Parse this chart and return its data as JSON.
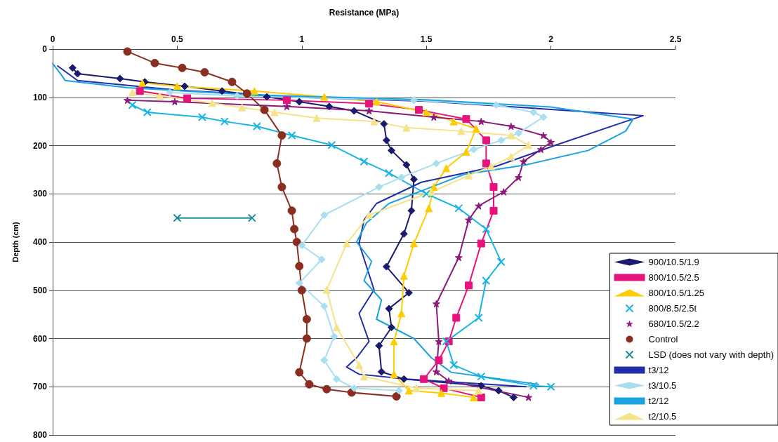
{
  "chart_data": {
    "type": "line",
    "xlabel": "Resistance (MPa)",
    "ylabel": "Depth (cm)",
    "xlim": [
      0,
      2.5
    ],
    "xticks": [
      0,
      0.5,
      1,
      1.5,
      2,
      2.5
    ],
    "ylim": [
      800,
      0
    ],
    "yticks": [
      0,
      100,
      200,
      300,
      400,
      500,
      600,
      700,
      800
    ],
    "grid": "y",
    "legend": "bottom right",
    "series": [
      {
        "name": "900/10.5/1.9",
        "color": "#1a1a6e",
        "marker": "diamond",
        "x": [
          0.08,
          0.1,
          0.27,
          0.37,
          0.53,
          0.68,
          0.86,
          0.99,
          1.11,
          1.21,
          1.33,
          1.34,
          1.36,
          1.42,
          1.45,
          1.44,
          1.41,
          1.34,
          1.43,
          1.35,
          1.36,
          1.31,
          1.32,
          1.41,
          1.72,
          1.79,
          1.85
        ],
        "values": [
          39,
          51,
          61,
          68,
          77,
          87,
          99,
          109,
          119,
          128,
          155,
          189,
          210,
          240,
          270,
          335,
          383,
          451,
          505,
          538,
          577,
          615,
          669,
          684,
          698,
          708,
          722
        ]
      },
      {
        "name": "800/10.5/2.5",
        "color": "#e8127c",
        "marker": "square",
        "x": [
          0.35,
          0.54,
          0.94,
          1.27,
          1.47,
          1.66,
          1.74,
          1.74,
          1.77,
          1.77,
          1.72,
          1.67,
          1.62,
          1.59,
          1.55,
          1.49,
          1.57,
          1.72
        ],
        "values": [
          87,
          102,
          106,
          113,
          126,
          145,
          189,
          237,
          286,
          335,
          403,
          490,
          557,
          606,
          645,
          684,
          703,
          722
        ]
      },
      {
        "name": "800/10.5/1.25",
        "color": "#ffcc00",
        "marker": "triangle",
        "x": [
          0.36,
          0.5,
          0.81,
          1.09,
          1.3,
          1.5,
          1.61,
          1.7,
          1.66,
          1.58,
          1.53,
          1.51,
          1.45,
          1.41,
          1.4,
          1.37,
          1.37,
          1.43,
          1.56,
          1.69
        ],
        "values": [
          70,
          77,
          87,
          99,
          109,
          131,
          150,
          165,
          213,
          247,
          286,
          330,
          403,
          470,
          548,
          606,
          674,
          708,
          713,
          722
        ]
      },
      {
        "name": "800/8.5/2.5t",
        "color": "#19b4e6",
        "marker": "cross",
        "x": [
          0.32,
          0.38,
          0.6,
          0.69,
          0.82,
          0.96,
          1.12,
          1.25,
          1.35,
          1.5,
          1.63,
          1.74,
          1.8,
          1.74,
          1.71,
          1.58,
          1.61,
          1.72,
          1.93,
          2.0
        ],
        "values": [
          116,
          131,
          141,
          150,
          160,
          179,
          199,
          233,
          257,
          300,
          330,
          373,
          441,
          480,
          557,
          606,
          655,
          679,
          698,
          700
        ]
      },
      {
        "name": "680/10.5/2.2",
        "color": "#8b1a7a",
        "marker": "star",
        "x": [
          0.3,
          0.49,
          0.94,
          1.27,
          1.53,
          1.72,
          1.84,
          1.97,
          2.0,
          1.96,
          1.89,
          1.87,
          1.81,
          1.71,
          1.67,
          1.63,
          1.54,
          1.55,
          1.54,
          1.59,
          1.91
        ],
        "values": [
          106,
          109,
          119,
          128,
          141,
          150,
          160,
          179,
          193,
          208,
          233,
          266,
          296,
          325,
          354,
          432,
          528,
          606,
          669,
          688,
          722
        ]
      },
      {
        "name": "Control",
        "color": "#8b2e22",
        "marker": "circle",
        "x": [
          0.3,
          0.41,
          0.52,
          0.61,
          0.72,
          0.78,
          0.85,
          0.92,
          0.9,
          0.92,
          0.96,
          0.97,
          0.98,
          0.99,
          1.0,
          1.02,
          1.02,
          0.99,
          1.03,
          1.1,
          1.2,
          1.38
        ],
        "values": [
          5,
          29,
          39,
          48,
          68,
          92,
          126,
          179,
          237,
          286,
          335,
          373,
          400,
          450,
          500,
          560,
          600,
          670,
          695,
          705,
          712,
          720
        ]
      },
      {
        "name": "LSD (does not vary with depth)",
        "color": "#1a8a99",
        "marker": "cross",
        "x": [
          0.5,
          0.8
        ],
        "values": [
          350,
          350
        ]
      },
      {
        "name": "t3/12",
        "color": "#1f2fa8",
        "marker": "none",
        "x": [
          0.02,
          0.1,
          0.5,
          1.0,
          1.5,
          2.0,
          2.37,
          2.3,
          2.02,
          1.78,
          1.48,
          1.3,
          1.25,
          1.23,
          1.29,
          1.23,
          1.27,
          1.22,
          1.18,
          1.23,
          1.42,
          1.9
        ],
        "values": [
          35,
          65,
          85,
          100,
          108,
          125,
          138,
          150,
          199,
          243,
          276,
          320,
          354,
          403,
          499,
          548,
          606,
          640,
          659,
          674,
          684,
          700
        ]
      },
      {
        "name": "t3/10.5",
        "color": "#a9def0",
        "marker": "diamond",
        "x": [
          0.47,
          0.74,
          1.45,
          1.78,
          1.93,
          1.97,
          1.87,
          1.8,
          1.69,
          1.54,
          1.4,
          1.31,
          1.09,
          1.0,
          1.08,
          0.99,
          1.09,
          1.13,
          1.09,
          1.14,
          1.21,
          1.39
        ],
        "values": [
          90,
          97,
          106,
          116,
          131,
          141,
          174,
          189,
          208,
          237,
          266,
          286,
          344,
          407,
          436,
          485,
          533,
          596,
          645,
          684,
          703,
          708
        ]
      },
      {
        "name": "t2/12",
        "color": "#1aa3e0",
        "marker": "none",
        "x": [
          0.0,
          0.03,
          0.05,
          0.3,
          0.8,
          1.5,
          2.0,
          2.33,
          2.3,
          2.15,
          1.9,
          1.65,
          1.5,
          1.35,
          1.26,
          1.22,
          1.28,
          1.25,
          1.32,
          1.3,
          1.45,
          1.52,
          1.6,
          1.95
        ],
        "values": [
          30,
          50,
          65,
          80,
          95,
          105,
          120,
          145,
          170,
          210,
          240,
          260,
          290,
          320,
          360,
          400,
          440,
          480,
          520,
          560,
          600,
          640,
          670,
          695
        ]
      },
      {
        "name": "t2/10.5",
        "color": "#f5e38a",
        "marker": "triangle",
        "x": [
          0.32,
          0.43,
          0.64,
          0.76,
          0.89,
          1.06,
          1.29,
          1.42,
          1.64,
          1.84,
          1.91,
          1.84,
          1.76,
          1.67,
          1.52,
          1.27,
          1.18,
          1.1,
          1.14,
          1.23,
          1.25,
          1.46,
          1.71
        ],
        "values": [
          90,
          97,
          112,
          121,
          131,
          143,
          150,
          163,
          170,
          179,
          199,
          223,
          243,
          262,
          296,
          344,
          403,
          499,
          577,
          655,
          679,
          703,
          708
        ]
      }
    ]
  }
}
